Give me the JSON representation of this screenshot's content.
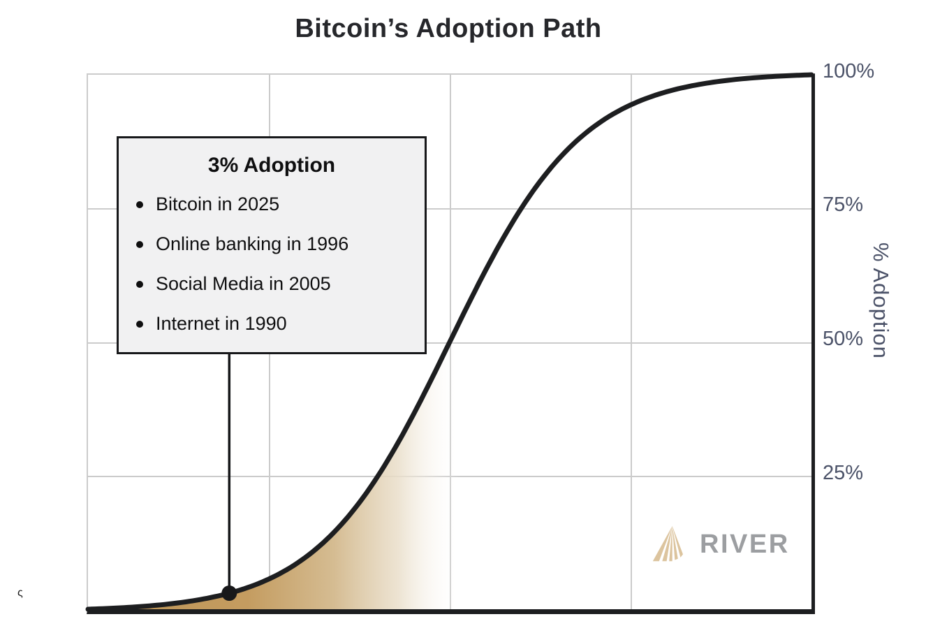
{
  "chart": {
    "title": "Bitcoin’s Adoption Path",
    "y_axis_label": "% Adoption",
    "y_ticks": [
      "100%",
      "75%",
      "50%",
      "25%"
    ]
  },
  "annotation": {
    "title": "3% Adoption",
    "items": [
      "Bitcoin in 2025",
      "Online banking in 1996",
      "Social Media in 2005",
      "Internet in 1990"
    ]
  },
  "logo": {
    "text": "RIVER",
    "mark": "river-fan-triangle-icon",
    "mark_color": "#dcc49e",
    "text_color": "#9c9ea1"
  },
  "artifact": {
    "text": "ς"
  },
  "colors": {
    "curve": "#1d1e20",
    "grid": "#cbcbcb",
    "axis_black": "#1d1e20",
    "tick_label": "#4b5268",
    "title": "#26272b",
    "callout_bg": "#f1f1f2",
    "callout_border": "#17181a",
    "fill_tan": "#bd9455"
  },
  "chart_data": {
    "type": "line",
    "title": "Bitcoin’s Adoption Path",
    "xlabel": "",
    "ylabel": "% Adoption",
    "ylim": [
      0,
      100
    ],
    "y_ticks_pct": [
      100,
      75,
      50,
      25
    ],
    "x_tick_labels": [],
    "grid": true,
    "curve_model": "normalized logistic S-curve",
    "logistic": {
      "k": 11,
      "midpoint_frac": 0.5
    },
    "samples": {
      "x_frac": [
        0,
        0.125,
        0.25,
        0.375,
        0.5,
        0.625,
        0.75,
        0.875,
        1
      ],
      "adoption_pct": [
        0,
        1.2,
        5.7,
        19.8,
        50,
        80.2,
        94.3,
        98.8,
        100
      ]
    },
    "annotation_point": {
      "adoption_pct": 3,
      "label": "3% Adoption",
      "milestones": [
        "Bitcoin in 2025",
        "Online banking in 1996",
        "Social Media in 2005",
        "Internet in 1990"
      ]
    },
    "fill": {
      "type": "gradient-under-curve-left-of-midpoint",
      "stops": [
        {
          "offset": 0,
          "color": "#bd9455",
          "opacity": 1
        },
        {
          "offset": 0.22,
          "color": "#c49c60",
          "opacity": 1
        },
        {
          "offset": 0.34,
          "color": "#d5bc92",
          "opacity": 1
        },
        {
          "offset": 0.43,
          "color": "#eadfcb",
          "opacity": 0.85
        },
        {
          "offset": 0.515,
          "color": "#ffffff",
          "opacity": 0
        }
      ]
    },
    "legend": null
  }
}
